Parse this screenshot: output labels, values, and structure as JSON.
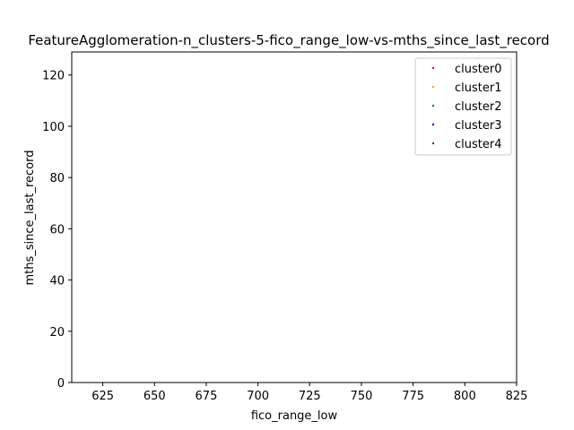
{
  "chart_data": {
    "type": "scatter",
    "title": "FeatureAgglomeration-n_clusters-5-fico_range_low-vs-mths_since_last_record",
    "xlabel": "fico_range_low",
    "ylabel": "mths_since_last_record",
    "xlim": [
      610,
      825
    ],
    "ylim": [
      0,
      129
    ],
    "xticks": [
      625,
      650,
      675,
      700,
      725,
      750,
      775,
      800,
      825
    ],
    "yticks": [
      0,
      20,
      40,
      60,
      80,
      100,
      120
    ],
    "grid": false,
    "legend_position": "top-right",
    "series": [
      {
        "name": "cluster0",
        "color": "#ff0000",
        "points": []
      },
      {
        "name": "cluster1",
        "color": "#ffa500",
        "points": []
      },
      {
        "name": "cluster2",
        "color": "#008000",
        "points": []
      },
      {
        "name": "cluster3",
        "color": "#0000ff",
        "points": []
      },
      {
        "name": "cluster4",
        "color": "#800080",
        "points": []
      }
    ]
  }
}
